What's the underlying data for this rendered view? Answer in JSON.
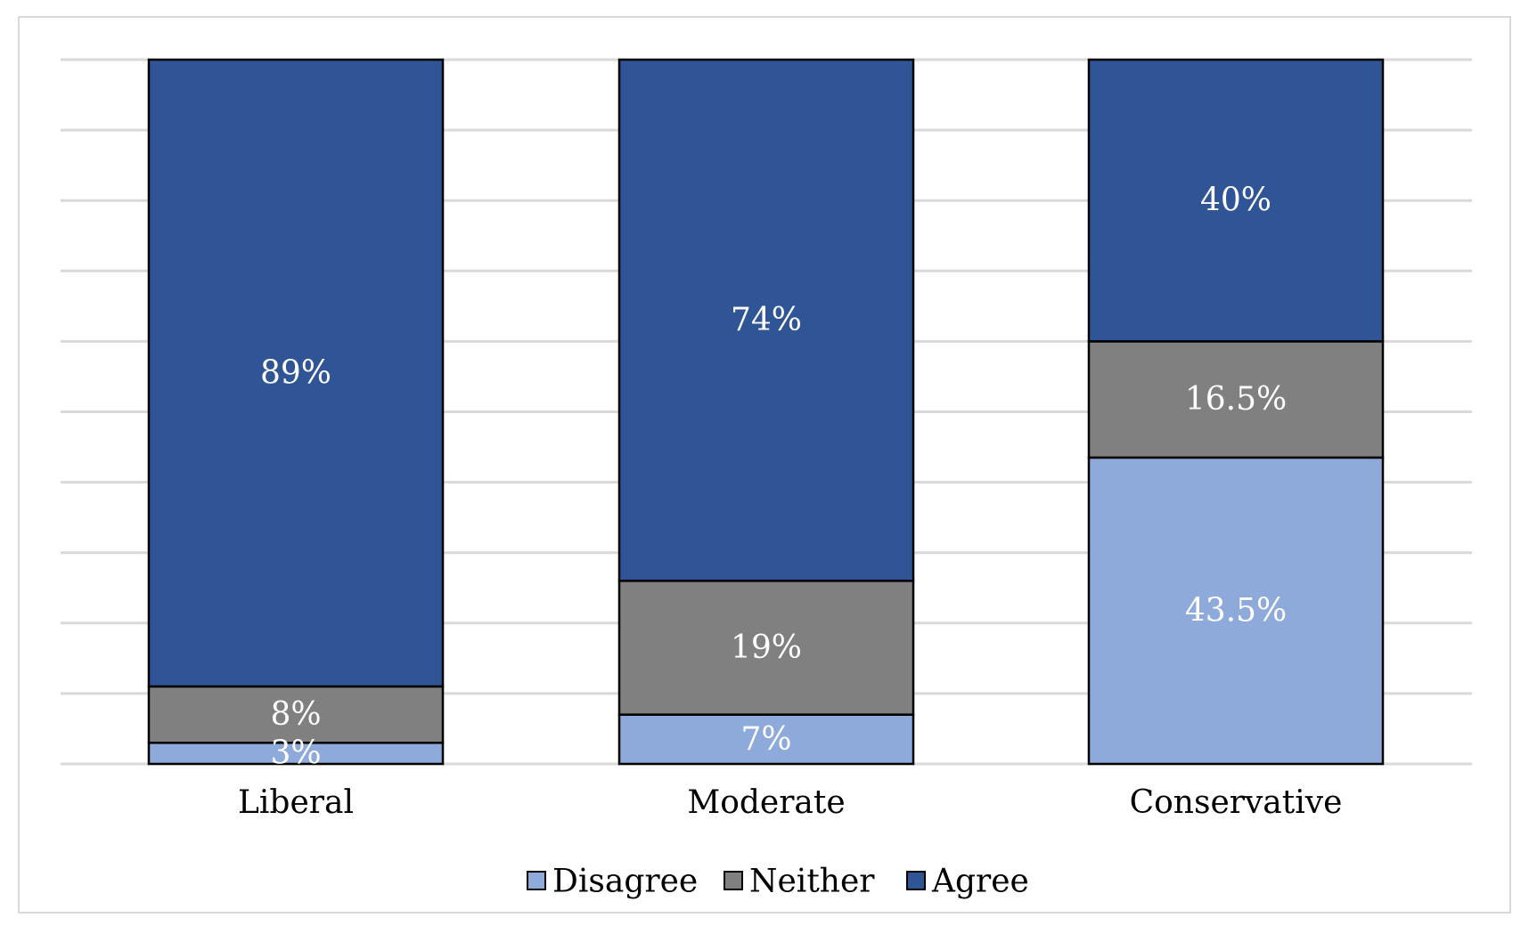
{
  "chart_data": {
    "type": "bar",
    "stacked": true,
    "categories": [
      "Liberal",
      "Moderate",
      "Conservative"
    ],
    "series": [
      {
        "name": "Disagree",
        "values": [
          3,
          7,
          43.5
        ],
        "labels": [
          "3%",
          "7%",
          "43.5%"
        ],
        "color": "#8eaadb"
      },
      {
        "name": "Neither",
        "values": [
          8,
          19,
          16.5
        ],
        "labels": [
          "8%",
          "19%",
          "16.5%"
        ],
        "color": "#808080"
      },
      {
        "name": "Agree",
        "values": [
          89,
          74,
          40
        ],
        "labels": [
          "89%",
          "74%",
          "40%"
        ],
        "color": "#2f5597"
      }
    ],
    "ylim": [
      0,
      100
    ],
    "grid": true,
    "legend": "bottom",
    "colors": {
      "gridline": "#d9d9d9",
      "bar_outline": "#000000",
      "frame": "#d9d9d9"
    }
  }
}
